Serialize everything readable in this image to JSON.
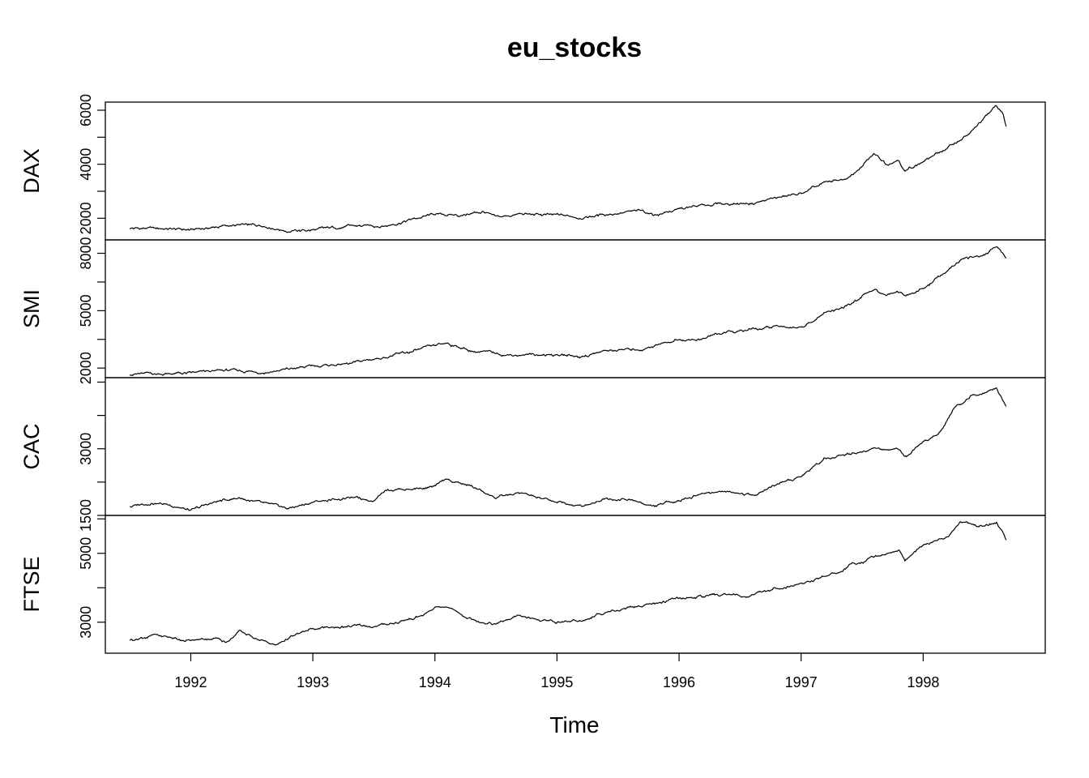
{
  "chart_data": {
    "type": "line",
    "title": "eu_stocks",
    "xlabel": "Time",
    "x_ticks": [
      "1992",
      "1993",
      "1994",
      "1995",
      "1996",
      "1997",
      "1998"
    ],
    "xlim": [
      1991.3,
      1999.0
    ],
    "line_color": "#000000",
    "grid": false,
    "series": [
      {
        "name": "DAX",
        "ylim": [
          1200,
          6300
        ],
        "y_ticks": [
          "2000",
          "4000",
          "6000"
        ],
        "points": [
          [
            1991.5,
            1630
          ],
          [
            1991.7,
            1620
          ],
          [
            1992.0,
            1570
          ],
          [
            1992.3,
            1720
          ],
          [
            1992.6,
            1740
          ],
          [
            1992.8,
            1530
          ],
          [
            1993.0,
            1560
          ],
          [
            1993.3,
            1700
          ],
          [
            1993.6,
            1730
          ],
          [
            1993.8,
            1950
          ],
          [
            1994.0,
            2150
          ],
          [
            1994.2,
            2100
          ],
          [
            1994.4,
            2250
          ],
          [
            1994.5,
            2010
          ],
          [
            1994.7,
            2150
          ],
          [
            1995.0,
            2100
          ],
          [
            1995.2,
            2040
          ],
          [
            1995.5,
            2200
          ],
          [
            1995.7,
            2260
          ],
          [
            1995.8,
            2130
          ],
          [
            1996.0,
            2330
          ],
          [
            1996.3,
            2530
          ],
          [
            1996.6,
            2560
          ],
          [
            1996.8,
            2750
          ],
          [
            1997.0,
            2900
          ],
          [
            1997.2,
            3300
          ],
          [
            1997.4,
            3500
          ],
          [
            1997.6,
            4370
          ],
          [
            1997.7,
            4020
          ],
          [
            1997.8,
            4200
          ],
          [
            1997.85,
            3760
          ],
          [
            1998.0,
            4100
          ],
          [
            1998.2,
            4600
          ],
          [
            1998.4,
            5200
          ],
          [
            1998.5,
            5700
          ],
          [
            1998.6,
            6150
          ],
          [
            1998.65,
            5900
          ],
          [
            1998.68,
            5400
          ]
        ]
      },
      {
        "name": "SMI",
        "ylim": [
          1500,
          8700
        ],
        "y_ticks": [
          "2000",
          "5000",
          "8000"
        ],
        "points": [
          [
            1991.5,
            1700
          ],
          [
            1991.7,
            1700
          ],
          [
            1992.0,
            1720
          ],
          [
            1992.3,
            1880
          ],
          [
            1992.6,
            1790
          ],
          [
            1992.8,
            1930
          ],
          [
            1993.0,
            2100
          ],
          [
            1993.3,
            2220
          ],
          [
            1993.6,
            2600
          ],
          [
            1993.8,
            2830
          ],
          [
            1994.0,
            3150
          ],
          [
            1994.1,
            3300
          ],
          [
            1994.3,
            2900
          ],
          [
            1994.6,
            2700
          ],
          [
            1995.0,
            2700
          ],
          [
            1995.2,
            2610
          ],
          [
            1995.4,
            2900
          ],
          [
            1995.7,
            3000
          ],
          [
            1995.8,
            3200
          ],
          [
            1996.0,
            3500
          ],
          [
            1996.2,
            3500
          ],
          [
            1996.3,
            3800
          ],
          [
            1996.5,
            3900
          ],
          [
            1996.6,
            4000
          ],
          [
            1996.8,
            4150
          ],
          [
            1997.0,
            4150
          ],
          [
            1997.2,
            4900
          ],
          [
            1997.4,
            5300
          ],
          [
            1997.6,
            6100
          ],
          [
            1997.7,
            5850
          ],
          [
            1997.8,
            6050
          ],
          [
            1997.85,
            5750
          ],
          [
            1998.0,
            6150
          ],
          [
            1998.2,
            7100
          ],
          [
            1998.3,
            7600
          ],
          [
            1998.4,
            7800
          ],
          [
            1998.5,
            7900
          ],
          [
            1998.6,
            8400
          ],
          [
            1998.65,
            8000
          ],
          [
            1998.68,
            7700
          ]
        ]
      },
      {
        "name": "CAC",
        "ylim": [
          1500,
          4600
        ],
        "y_ticks": [
          "1500",
          "3000"
        ],
        "points": [
          [
            1991.5,
            1700
          ],
          [
            1991.7,
            1800
          ],
          [
            1991.9,
            1700
          ],
          [
            1992.0,
            1600
          ],
          [
            1992.2,
            1800
          ],
          [
            1992.4,
            1900
          ],
          [
            1992.6,
            1750
          ],
          [
            1992.8,
            1650
          ],
          [
            1993.0,
            1800
          ],
          [
            1993.3,
            1900
          ],
          [
            1993.5,
            1850
          ],
          [
            1993.6,
            2100
          ],
          [
            1993.8,
            2100
          ],
          [
            1994.0,
            2150
          ],
          [
            1994.1,
            2300
          ],
          [
            1994.3,
            2150
          ],
          [
            1994.5,
            1900
          ],
          [
            1994.7,
            2000
          ],
          [
            1994.9,
            1850
          ],
          [
            1995.2,
            1700
          ],
          [
            1995.4,
            1900
          ],
          [
            1995.6,
            1850
          ],
          [
            1995.8,
            1700
          ],
          [
            1996.0,
            1850
          ],
          [
            1996.2,
            2000
          ],
          [
            1996.4,
            2050
          ],
          [
            1996.6,
            1950
          ],
          [
            1996.8,
            2200
          ],
          [
            1997.0,
            2400
          ],
          [
            1997.2,
            2800
          ],
          [
            1997.4,
            2900
          ],
          [
            1997.6,
            3000
          ],
          [
            1997.7,
            2950
          ],
          [
            1997.8,
            3000
          ],
          [
            1997.85,
            2800
          ],
          [
            1998.0,
            3100
          ],
          [
            1998.15,
            3400
          ],
          [
            1998.25,
            3900
          ],
          [
            1998.4,
            4200
          ],
          [
            1998.5,
            4300
          ],
          [
            1998.6,
            4400
          ],
          [
            1998.65,
            4100
          ],
          [
            1998.68,
            3950
          ]
        ]
      },
      {
        "name": "FTSE",
        "ylim": [
          2100,
          6100
        ],
        "y_ticks": [
          "3000",
          "5000"
        ],
        "points": [
          [
            1991.5,
            2480
          ],
          [
            1991.7,
            2620
          ],
          [
            1992.0,
            2460
          ],
          [
            1992.2,
            2550
          ],
          [
            1992.3,
            2440
          ],
          [
            1992.4,
            2730
          ],
          [
            1992.6,
            2450
          ],
          [
            1992.7,
            2330
          ],
          [
            1992.8,
            2540
          ],
          [
            1993.0,
            2800
          ],
          [
            1993.3,
            2880
          ],
          [
            1993.5,
            2870
          ],
          [
            1993.7,
            3000
          ],
          [
            1993.9,
            3200
          ],
          [
            1994.0,
            3400
          ],
          [
            1994.1,
            3450
          ],
          [
            1994.3,
            3100
          ],
          [
            1994.5,
            2950
          ],
          [
            1994.7,
            3200
          ],
          [
            1994.8,
            3050
          ],
          [
            1995.0,
            3000
          ],
          [
            1995.2,
            3050
          ],
          [
            1995.4,
            3300
          ],
          [
            1995.6,
            3450
          ],
          [
            1995.9,
            3600
          ],
          [
            1996.0,
            3700
          ],
          [
            1996.2,
            3750
          ],
          [
            1996.4,
            3800
          ],
          [
            1996.6,
            3750
          ],
          [
            1996.8,
            4000
          ],
          [
            1997.0,
            4100
          ],
          [
            1997.2,
            4350
          ],
          [
            1997.3,
            4450
          ],
          [
            1997.4,
            4650
          ],
          [
            1997.6,
            4900
          ],
          [
            1997.8,
            5100
          ],
          [
            1997.85,
            4800
          ],
          [
            1998.0,
            5200
          ],
          [
            1998.2,
            5500
          ],
          [
            1998.3,
            5900
          ],
          [
            1998.4,
            5850
          ],
          [
            1998.5,
            5800
          ],
          [
            1998.6,
            5900
          ],
          [
            1998.65,
            5650
          ],
          [
            1998.68,
            5400
          ]
        ]
      }
    ]
  }
}
